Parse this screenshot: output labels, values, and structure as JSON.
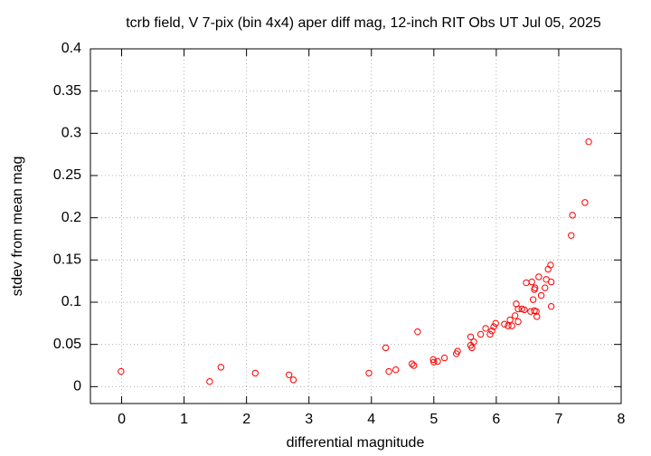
{
  "chart_data": {
    "type": "scatter",
    "title": "tcrb field, V 7-pix (bin 4x4) aper diff mag,  12-inch RIT Obs UT Jul 05, 2025",
    "xlabel": "differential magnitude",
    "ylabel": "stdev from mean mag",
    "xlim": [
      -0.5,
      8
    ],
    "ylim": [
      -0.02,
      0.4
    ],
    "xticks": [
      0,
      1,
      2,
      3,
      4,
      5,
      6,
      7,
      8
    ],
    "yticks": [
      0,
      0.05,
      0.1,
      0.15,
      0.2,
      0.25,
      0.3,
      0.35,
      0.4
    ],
    "grid": true,
    "series": [
      {
        "color": "#ff0000",
        "x": [
          -0.01,
          1.41,
          1.59,
          2.14,
          2.68,
          2.75,
          3.96,
          4.23,
          4.28,
          4.39,
          4.65,
          4.68,
          4.74,
          4.99,
          5.0,
          5.06,
          5.17,
          5.36,
          5.38,
          5.59,
          5.59,
          5.61,
          5.64,
          5.75,
          5.83,
          5.9,
          5.93,
          5.96,
          5.99,
          6.13,
          6.19,
          6.22,
          6.25,
          6.3,
          6.32,
          6.35,
          6.35,
          6.41,
          6.45,
          6.48,
          6.55,
          6.57,
          6.59,
          6.61,
          6.62,
          6.61,
          6.64,
          6.65,
          6.68,
          6.72,
          6.78,
          6.8,
          6.83,
          6.87,
          6.88,
          6.88,
          7.2,
          7.22,
          7.42,
          7.48
        ],
        "values": [
          0.018,
          0.006,
          0.023,
          0.016,
          0.014,
          0.008,
          0.016,
          0.046,
          0.018,
          0.02,
          0.027,
          0.025,
          0.065,
          0.032,
          0.029,
          0.03,
          0.034,
          0.039,
          0.042,
          0.059,
          0.049,
          0.046,
          0.053,
          0.062,
          0.069,
          0.062,
          0.066,
          0.071,
          0.075,
          0.074,
          0.072,
          0.079,
          0.072,
          0.084,
          0.098,
          0.092,
          0.077,
          0.092,
          0.091,
          0.123,
          0.089,
          0.124,
          0.103,
          0.115,
          0.117,
          0.09,
          0.089,
          0.083,
          0.13,
          0.108,
          0.117,
          0.127,
          0.139,
          0.144,
          0.124,
          0.095,
          0.179,
          0.203,
          0.218,
          0.29
        ]
      }
    ]
  }
}
